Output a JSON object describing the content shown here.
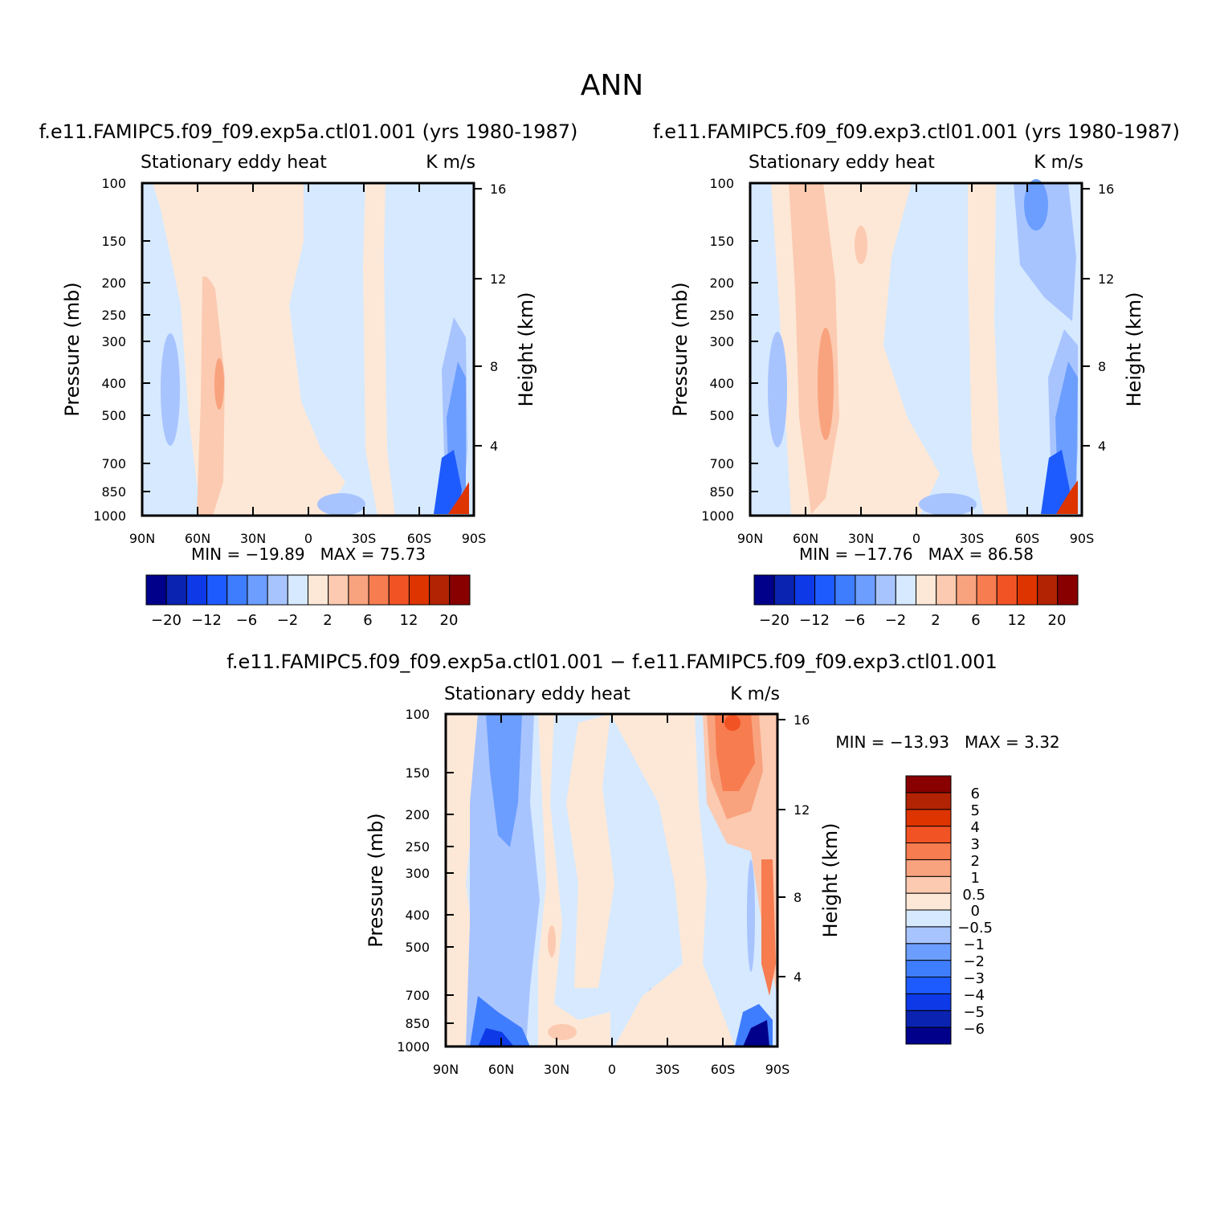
{
  "page_title": "ANN",
  "contour_colors": [
    "#00008b",
    "#0a23b0",
    "#0d3ae6",
    "#1e5bff",
    "#3f7dff",
    "#6c9eff",
    "#a8c4ff",
    "#d6e9ff",
    "#fde8d7",
    "#fbcab0",
    "#f9a27e",
    "#f77c50",
    "#f25324",
    "#dd3400",
    "#b22303",
    "#880000"
  ],
  "diff_colors": [
    "#00008b",
    "#0a23b0",
    "#0d3ae6",
    "#1e5bff",
    "#3f7dff",
    "#6c9eff",
    "#a8c4ff",
    "#d6e9ff",
    "#fde8d7",
    "#fbcab0",
    "#f9a27e",
    "#f77c50",
    "#f25324",
    "#dd3400",
    "#b22303",
    "#880000"
  ],
  "chart_data": [
    {
      "type": "heatmap",
      "title": "f.e11.FAMIPC5.f09_f09.exp5a.ctl01.001 (yrs 1980-1987)",
      "left_label": "Stationary eddy heat",
      "right_label": "K m/s",
      "ylabel": "Pressure (mb)",
      "ylabel_right": "Height (km)",
      "x_ticks": [
        "90N",
        "60N",
        "30N",
        "0",
        "30S",
        "60S",
        "90S"
      ],
      "y_ticks": [
        "100",
        "150",
        "200",
        "250",
        "300",
        "400",
        "500",
        "700",
        "850",
        "1000"
      ],
      "y2_ticks": [
        "16",
        "12",
        "8",
        "4"
      ],
      "min_label": "MIN = −19.89",
      "max_label": "MAX = 75.73",
      "colorbar_labels": [
        "−20",
        "−12",
        "−6",
        "−2",
        "2",
        "6",
        "12",
        "20"
      ],
      "xlim": [
        90,
        -90
      ],
      "ylim": [
        1000,
        100
      ]
    },
    {
      "type": "heatmap",
      "title": "f.e11.FAMIPC5.f09_f09.exp3.ctl01.001 (yrs 1980-1987)",
      "left_label": "Stationary eddy heat",
      "right_label": "K m/s",
      "ylabel": "Pressure (mb)",
      "ylabel_right": "Height (km)",
      "x_ticks": [
        "90N",
        "60N",
        "30N",
        "0",
        "30S",
        "60S",
        "90S"
      ],
      "y_ticks": [
        "100",
        "150",
        "200",
        "250",
        "300",
        "400",
        "500",
        "700",
        "850",
        "1000"
      ],
      "y2_ticks": [
        "16",
        "12",
        "8",
        "4"
      ],
      "min_label": "MIN = −17.76",
      "max_label": "MAX = 86.58",
      "colorbar_labels": [
        "−20",
        "−12",
        "−6",
        "−2",
        "2",
        "6",
        "12",
        "20"
      ],
      "xlim": [
        90,
        -90
      ],
      "ylim": [
        1000,
        100
      ]
    },
    {
      "type": "heatmap",
      "title": "f.e11.FAMIPC5.f09_f09.exp5a.ctl01.001 − f.e11.FAMIPC5.f09_f09.exp3.ctl01.001",
      "left_label": "Stationary eddy heat",
      "right_label": "K m/s",
      "ylabel": "Pressure (mb)",
      "ylabel_right": "Height (km)",
      "x_ticks": [
        "90N",
        "60N",
        "30N",
        "0",
        "30S",
        "60S",
        "90S"
      ],
      "y_ticks": [
        "100",
        "150",
        "200",
        "250",
        "300",
        "400",
        "500",
        "700",
        "850",
        "1000"
      ],
      "y2_ticks": [
        "16",
        "12",
        "8",
        "4"
      ],
      "min_label": "MIN = −13.93",
      "max_label": "MAX = 3.32",
      "colorbar_labels": [
        "6",
        "5",
        "4",
        "3",
        "2",
        "1",
        "0.5",
        "0",
        "−0.5",
        "−1",
        "−2",
        "−3",
        "−4",
        "−5",
        "−6"
      ],
      "xlim": [
        90,
        -90
      ],
      "ylim": [
        1000,
        100
      ]
    }
  ]
}
